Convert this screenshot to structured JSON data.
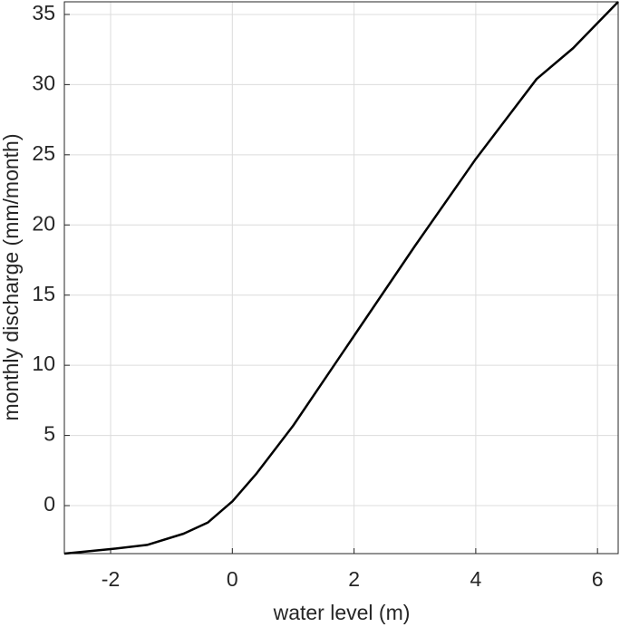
{
  "chart_data": {
    "type": "line",
    "xlabel": "water level (m)",
    "ylabel": "monthly discharge (mm/month)",
    "x": [
      -2.76,
      -2,
      -1.4,
      -0.8,
      -0.4,
      0,
      0.4,
      1,
      2,
      3,
      4,
      5,
      5.6,
      6.34
    ],
    "series": [
      {
        "color": "#000000",
        "values": [
          -3.42,
          -3.1,
          -2.8,
          -2.0,
          -1.2,
          0.3,
          2.3,
          5.7,
          12.1,
          18.5,
          24.7,
          30.4,
          32.6,
          35.9
        ]
      }
    ],
    "xlim": [
      -2.76,
      6.34
    ],
    "xticks": [
      -2,
      0,
      2,
      4,
      6
    ],
    "ylim": [
      -3.42,
      35.9
    ],
    "yticks": [
      0,
      5,
      10,
      15,
      20,
      25,
      30,
      35
    ],
    "grid": true
  }
}
